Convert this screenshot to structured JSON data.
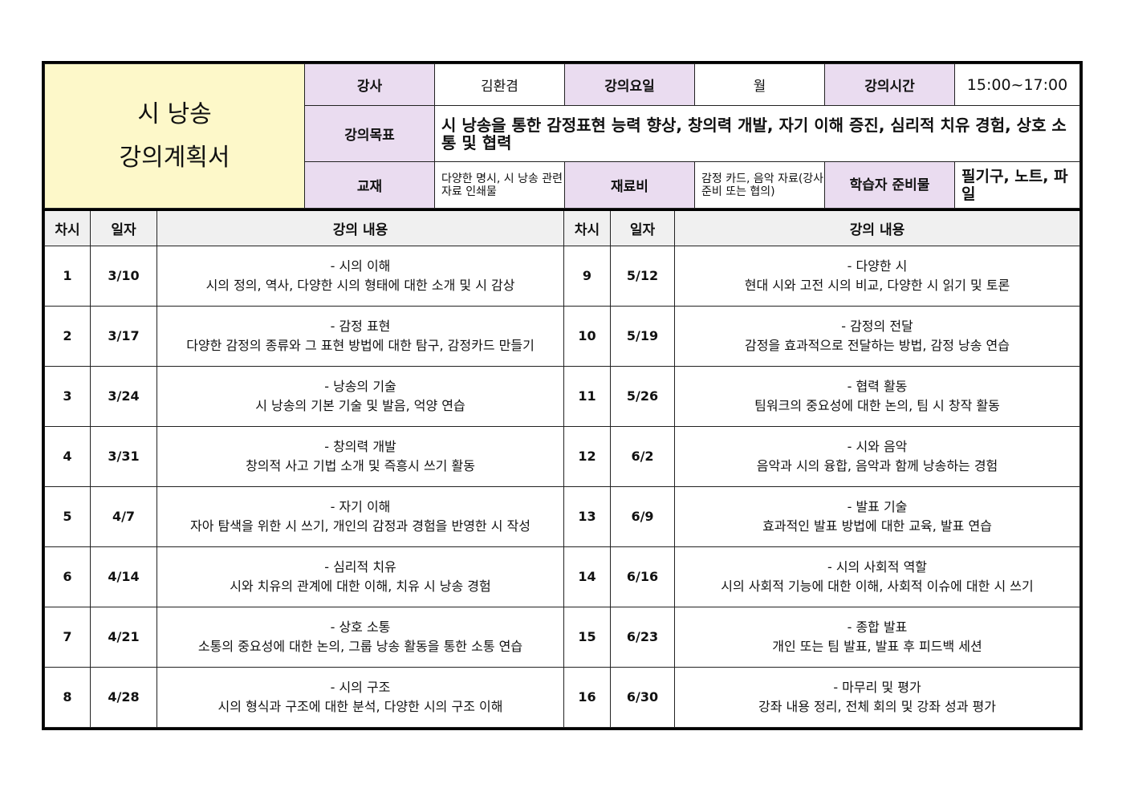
{
  "header": {
    "title_line1": "시 낭송",
    "title_line2": "강의계획서",
    "instructor_label": "강사",
    "instructor": "김환겸",
    "day_label": "강의요일",
    "day": "월",
    "time_label": "강의시간",
    "time": "15:00~17:00",
    "goal_label": "강의목표",
    "goal": "시 낭송을 통한 감정표현 능력 향상, 창의력 개발, 자기 이해 증진, 심리적 치유 경험, 상호 소통 및 협력",
    "textbook_label": "교재",
    "textbook": "다양한 명시, 시 낭송 관련 자료 인쇄물",
    "material_label": "재료비",
    "material": "감정 카드, 음악 자료(강사 준비 또는 협의)",
    "prep_label": "학습자 준비물",
    "prep": "필기구, 노트, 파일"
  },
  "columns": {
    "session": "차시",
    "date": "일자",
    "content": "강의 내용"
  },
  "rows": [
    {
      "l": {
        "n": "1",
        "d": "3/10",
        "t": "- 시의 이해",
        "c": "시의 정의, 역사, 다양한 시의 형태에 대한 소개 및 시 감상"
      },
      "r": {
        "n": "9",
        "d": "5/12",
        "t": "- 다양한 시",
        "c": "현대 시와 고전 시의 비교, 다양한 시 읽기 및 토론"
      }
    },
    {
      "l": {
        "n": "2",
        "d": "3/17",
        "t": "- 감정 표현",
        "c": "다양한 감정의 종류와 그 표현 방법에 대한 탐구, 감정카드 만들기"
      },
      "r": {
        "n": "10",
        "d": "5/19",
        "t": "- 감정의 전달",
        "c": "감정을 효과적으로 전달하는 방법, 감정 낭송 연습"
      }
    },
    {
      "l": {
        "n": "3",
        "d": "3/24",
        "t": "- 낭송의 기술",
        "c": "시 낭송의 기본 기술 및 발음, 억양 연습"
      },
      "r": {
        "n": "11",
        "d": "5/26",
        "t": "- 협력 활동",
        "c": "팀워크의 중요성에 대한 논의, 팀 시 창작 활동"
      }
    },
    {
      "l": {
        "n": "4",
        "d": "3/31",
        "t": "- 창의력 개발",
        "c": "창의적 사고 기법 소개 및 즉흥시 쓰기 활동"
      },
      "r": {
        "n": "12",
        "d": "6/2",
        "t": "- 시와 음악",
        "c": "음악과 시의 융합, 음악과 함께 낭송하는 경험"
      }
    },
    {
      "l": {
        "n": "5",
        "d": "4/7",
        "t": "- 자기 이해",
        "c": "자아 탐색을 위한 시 쓰기, 개인의 감정과 경험을 반영한 시 작성"
      },
      "r": {
        "n": "13",
        "d": "6/9",
        "t": "- 발표 기술",
        "c": "효과적인 발표 방법에 대한 교육, 발표 연습"
      }
    },
    {
      "l": {
        "n": "6",
        "d": "4/14",
        "t": "- 심리적 치유",
        "c": "시와 치유의 관계에 대한 이해, 치유 시 낭송 경험"
      },
      "r": {
        "n": "14",
        "d": "6/16",
        "t": "- 시의 사회적 역할",
        "c": "시의 사회적 기능에 대한 이해, 사회적 이슈에 대한 시 쓰기"
      }
    },
    {
      "l": {
        "n": "7",
        "d": "4/21",
        "t": "- 상호 소통",
        "c": "소통의 중요성에 대한 논의, 그룹 낭송 활동을 통한 소통 연습"
      },
      "r": {
        "n": "15",
        "d": "6/23",
        "t": "- 종합 발표",
        "c": "개인 또는 팀 발표, 발표 후 피드백 세션"
      }
    },
    {
      "l": {
        "n": "8",
        "d": "4/28",
        "t": "- 시의 구조",
        "c": "시의 형식과 구조에 대한 분석, 다양한 시의 구조 이해"
      },
      "r": {
        "n": "16",
        "d": "6/30",
        "t": "- 마무리 및 평가",
        "c": "강좌 내용 정리, 전체 회의 및 강좌 성과 평가"
      }
    }
  ],
  "colors": {
    "title_bg": "#fdf8c9",
    "label_bg": "#eadcf0",
    "header_bg": "#f0f0f0"
  }
}
